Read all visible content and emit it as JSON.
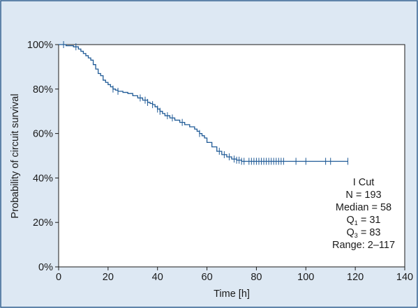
{
  "colors": {
    "panel_background": "#dde8f3",
    "panel_border": "#2f5f8f",
    "plot_background": "#ffffff",
    "curve": "#1f5a96",
    "axis": "#1a1a1a"
  },
  "chart_data": {
    "type": "line",
    "title": "",
    "xlabel": "Time [h]",
    "ylabel": "Probability of circuit survival",
    "xlim": [
      0,
      140
    ],
    "ylim": [
      0,
      1
    ],
    "x_ticks": [
      0,
      20,
      40,
      60,
      80,
      100,
      120,
      140
    ],
    "x_tick_labels": [
      "0",
      "20",
      "40",
      "60",
      "80",
      "100",
      "120",
      "140"
    ],
    "y_ticks": [
      0,
      0.2,
      0.4,
      0.6,
      0.8,
      1.0
    ],
    "y_tick_labels": [
      "0%",
      "20%",
      "40%",
      "60%",
      "80%",
      "100%"
    ],
    "grid": false,
    "legend": "none",
    "series": [
      {
        "x": [
          0,
          3,
          6,
          8,
          9,
          10,
          11,
          12,
          13,
          14,
          15,
          16,
          17,
          18,
          19,
          20,
          21,
          22,
          23,
          24,
          26,
          28,
          30,
          32,
          34,
          36,
          37,
          38,
          39,
          40,
          41,
          42,
          43,
          45,
          47,
          49,
          51,
          53,
          55,
          56,
          57,
          58,
          59,
          60,
          62,
          64,
          66,
          68,
          70,
          72,
          74,
          117
        ],
        "y": [
          1.0,
          0.995,
          0.99,
          0.98,
          0.97,
          0.96,
          0.95,
          0.94,
          0.93,
          0.91,
          0.89,
          0.87,
          0.86,
          0.84,
          0.83,
          0.82,
          0.81,
          0.8,
          0.795,
          0.79,
          0.785,
          0.78,
          0.77,
          0.76,
          0.75,
          0.74,
          0.735,
          0.73,
          0.72,
          0.71,
          0.7,
          0.69,
          0.68,
          0.67,
          0.66,
          0.65,
          0.64,
          0.63,
          0.62,
          0.61,
          0.6,
          0.59,
          0.58,
          0.56,
          0.54,
          0.52,
          0.505,
          0.495,
          0.485,
          0.48,
          0.475,
          0.475
        ],
        "censored": [
          2,
          7,
          22,
          24,
          33,
          35,
          36,
          38,
          40,
          41,
          44,
          46,
          50,
          57,
          65,
          67,
          69,
          71,
          72,
          73,
          74,
          75,
          77,
          78,
          79,
          80,
          81,
          82,
          83,
          84,
          85,
          86,
          87,
          88,
          89,
          90,
          91,
          96,
          100,
          108,
          110,
          117
        ]
      }
    ],
    "annotation": {
      "line1": "I Cut",
      "line2": "N = 193",
      "line3": "Median = 58",
      "q1_label": "Q",
      "q1_sub": "1",
      "q1_value": " = 31",
      "q3_label": "Q",
      "q3_sub": "3",
      "q3_value": " = 83",
      "line6": "Range: 2–117"
    }
  }
}
